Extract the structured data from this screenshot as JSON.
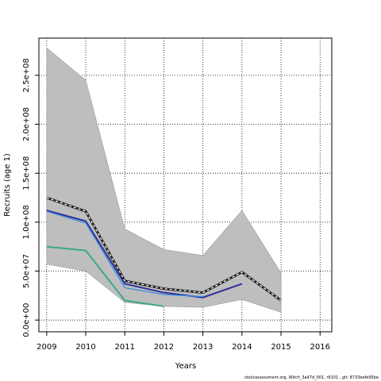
{
  "chart_data": {
    "type": "line",
    "xlabel": "Years",
    "ylabel": "Recruits (age 1)",
    "x": [
      2009,
      2010,
      2011,
      2012,
      2013,
      2014,
      2015,
      2016
    ],
    "x_ticks": [
      "2009",
      "2010",
      "2011",
      "2012",
      "2013",
      "2014",
      "2015",
      "2016"
    ],
    "xlim": [
      2008.8,
      2016.3
    ],
    "ylim": [
      -12000000,
      288000000
    ],
    "y_ticks": [
      0,
      50000000,
      100000000,
      150000000,
      200000000,
      250000000
    ],
    "y_tick_labels": [
      "0.0e+00",
      "5.0e+07",
      "1.0e+08",
      "1.5e+08",
      "2.0e+08",
      "2.5e+08"
    ],
    "grid": true,
    "band": {
      "x": [
        2009,
        2010,
        2011,
        2012,
        2013,
        2014,
        2015
      ],
      "upper": [
        278000000,
        245000000,
        93000000,
        72000000,
        66000000,
        112000000,
        48000000
      ],
      "lower": [
        57000000,
        50000000,
        18000000,
        14000000,
        13000000,
        21000000,
        8000000
      ],
      "color": "#bebebe"
    },
    "series": [
      {
        "x": [
          2009,
          2010,
          2011,
          2012,
          2013,
          2014,
          2015
        ],
        "values": [
          125000000,
          111000000,
          40000000,
          32000000,
          28000000,
          49000000,
          20000000
        ],
        "color": "#222222",
        "style": "dashed-bold"
      },
      {
        "x": [
          2009,
          2010,
          2011,
          2012,
          2013,
          2014
        ],
        "values": [
          112000000,
          101000000,
          37000000,
          28000000,
          23000000,
          37000000
        ],
        "color": "#2e2e99",
        "style": "solid-bold"
      },
      {
        "x": [
          2009,
          2010,
          2011,
          2012,
          2013
        ],
        "values": [
          111000000,
          99000000,
          33000000,
          26000000,
          24000000
        ],
        "color": "#3b8ee0",
        "style": "solid"
      },
      {
        "x": [
          2009,
          2010,
          2011,
          2012
        ],
        "values": [
          75000000,
          71000000,
          20000000,
          14000000
        ],
        "color": "#3aa98c",
        "style": "solid-bold"
      }
    ]
  },
  "footer": "stockassessment.org, Witch_3a47d_001, r9101 , git: 8733eefe95be"
}
